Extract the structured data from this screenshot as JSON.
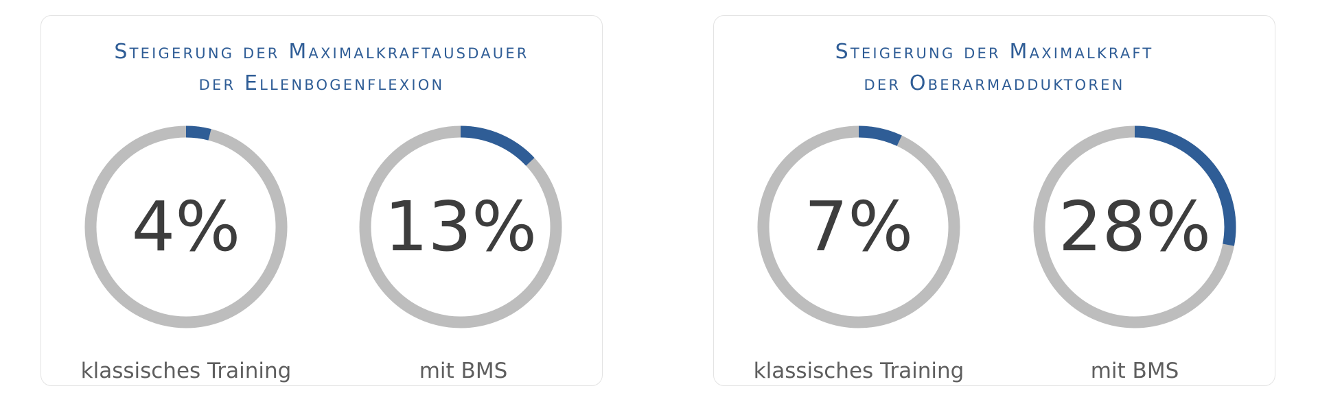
{
  "colors": {
    "accent": "#2f5d96",
    "track": "#bdbdbd",
    "value_text": "#3d3d3d",
    "label_text": "#5e5e5e"
  },
  "chart_data": [
    {
      "type": "donut",
      "title_lines": [
        "Steigerung der Maximalkraftausdauer",
        "der Ellenbogenflexion"
      ],
      "series": [
        {
          "label": "klassisches Training",
          "value": 4,
          "display": "4%"
        },
        {
          "label": "mit BMS",
          "value": 13,
          "display": "13%"
        }
      ],
      "ylim": [
        0,
        100
      ]
    },
    {
      "type": "donut",
      "title_lines": [
        "Steigerung der Maximalkraft",
        "der Oberarmadduktoren"
      ],
      "series": [
        {
          "label": "klassisches Training",
          "value": 7,
          "display": "7%"
        },
        {
          "label": "mit BMS",
          "value": 28,
          "display": "28%"
        }
      ],
      "ylim": [
        0,
        100
      ]
    }
  ]
}
